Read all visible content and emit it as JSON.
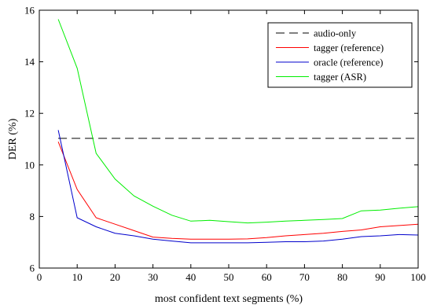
{
  "chart_data": {
    "type": "line",
    "title": "",
    "xlabel": "most confident text segments (%)",
    "ylabel": "DER (%)",
    "xlim": [
      0,
      100
    ],
    "ylim": [
      6,
      16
    ],
    "xticks": [
      0,
      10,
      20,
      30,
      40,
      50,
      60,
      70,
      80,
      90,
      100
    ],
    "yticks": [
      6,
      8,
      10,
      12,
      14,
      16
    ],
    "grid": false,
    "legend_position": "top-right",
    "series": [
      {
        "name": "audio-only",
        "color": "#000000",
        "dash": "dashed",
        "x": [
          5,
          100
        ],
        "y": [
          11.03,
          11.03
        ]
      },
      {
        "name": "tagger (reference)",
        "color": "#ff0000",
        "dash": "solid",
        "x": [
          5,
          10,
          15,
          20,
          25,
          30,
          35,
          40,
          45,
          50,
          55,
          60,
          65,
          70,
          75,
          80,
          85,
          90,
          95,
          100
        ],
        "y": [
          10.9,
          9.05,
          7.95,
          7.7,
          7.45,
          7.2,
          7.15,
          7.12,
          7.12,
          7.12,
          7.13,
          7.18,
          7.25,
          7.3,
          7.35,
          7.42,
          7.48,
          7.6,
          7.65,
          7.7
        ]
      },
      {
        "name": "oracle (reference)",
        "color": "#0000cc",
        "dash": "solid",
        "x": [
          5,
          10,
          15,
          20,
          25,
          30,
          35,
          40,
          45,
          50,
          55,
          60,
          65,
          70,
          75,
          80,
          85,
          90,
          95,
          100
        ],
        "y": [
          11.35,
          7.95,
          7.6,
          7.35,
          7.25,
          7.12,
          7.05,
          6.98,
          6.98,
          6.98,
          6.98,
          7.0,
          7.02,
          7.02,
          7.05,
          7.12,
          7.22,
          7.25,
          7.3,
          7.28
        ]
      },
      {
        "name": "tagger (ASR)",
        "color": "#00ee00",
        "dash": "solid",
        "x": [
          5,
          10,
          15,
          20,
          25,
          30,
          35,
          40,
          45,
          50,
          55,
          60,
          65,
          70,
          75,
          80,
          85,
          90,
          95,
          100
        ],
        "y": [
          15.65,
          13.75,
          10.45,
          9.45,
          8.8,
          8.4,
          8.05,
          7.82,
          7.85,
          7.8,
          7.75,
          7.78,
          7.82,
          7.85,
          7.88,
          7.92,
          8.22,
          8.25,
          8.32,
          8.38
        ]
      }
    ]
  }
}
